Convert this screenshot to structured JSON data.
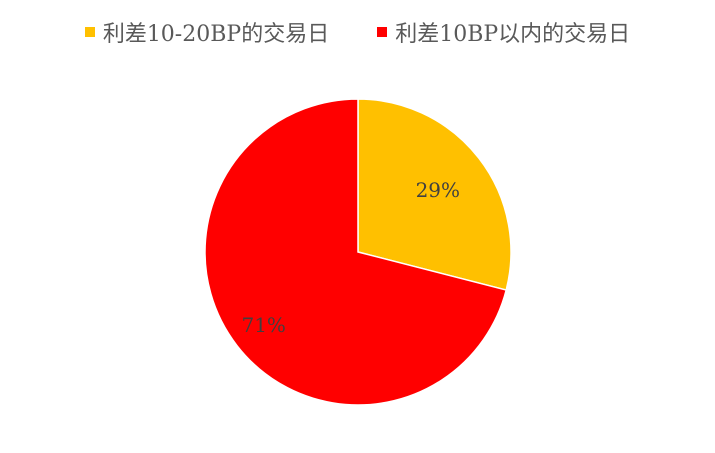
{
  "chart_data": {
    "type": "pie",
    "categories": [
      "利差10-20BP的交易日",
      "利差10BP以内的交易日"
    ],
    "values": [
      29,
      71
    ],
    "data_labels": [
      "29%",
      "71%"
    ],
    "colors": [
      "#FFC000",
      "#FF0000"
    ],
    "legend_position": "top",
    "start_angle": "12 o'clock, clockwise"
  }
}
